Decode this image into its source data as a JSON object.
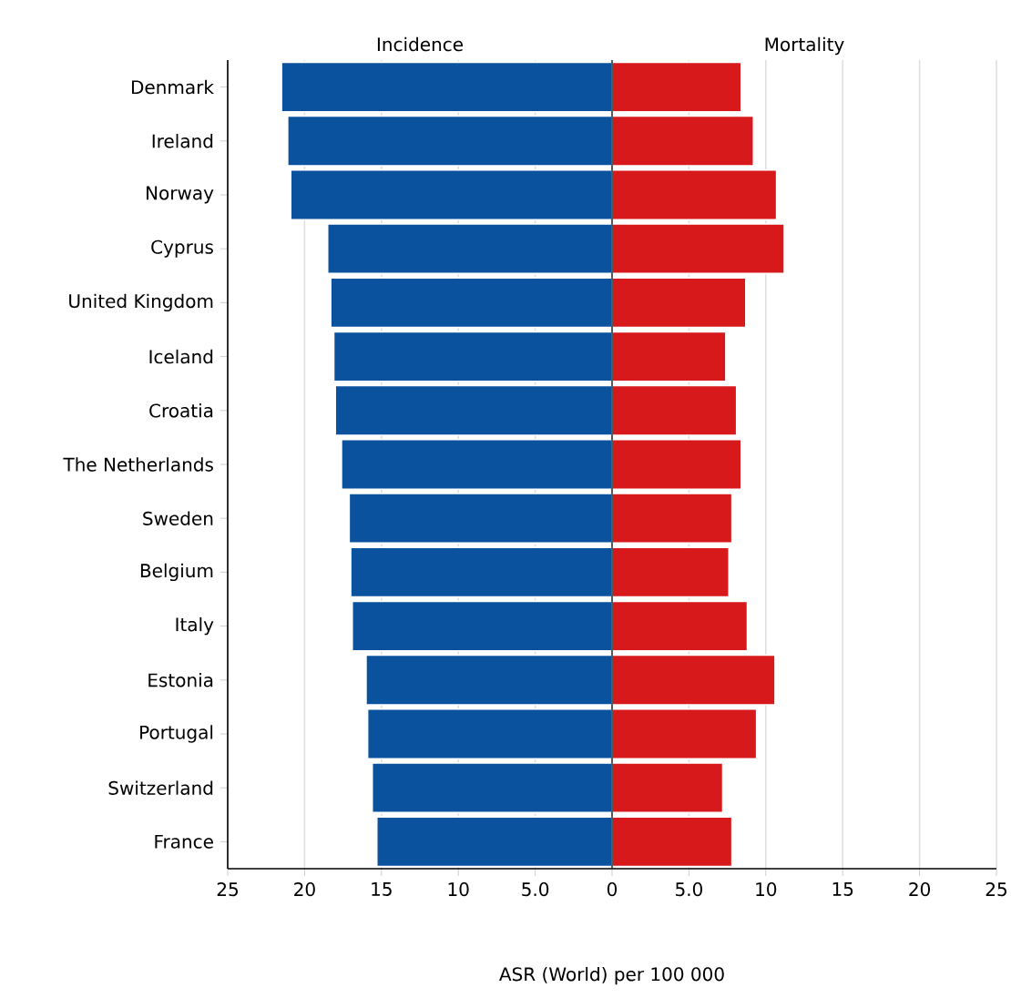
{
  "chart_data": {
    "type": "bar",
    "orientation": "horizontal",
    "xlabel": "ASR (World) per 100 000",
    "categories": [
      "Denmark",
      "Ireland",
      "Norway",
      "Cyprus",
      "United Kingdom",
      "Iceland",
      "Croatia",
      "The Netherlands",
      "Sweden",
      "Belgium",
      "Italy",
      "Estonia",
      "Portugal",
      "Switzerland",
      "France"
    ],
    "series": [
      {
        "name": "Incidence",
        "color": "#0a529e",
        "values": [
          -21.5,
          -21.1,
          -20.9,
          -18.5,
          -18.3,
          -18.1,
          -18.0,
          -17.6,
          -17.1,
          -17.0,
          -16.9,
          -16.0,
          -15.9,
          -15.6,
          -15.3
        ]
      },
      {
        "name": "Mortality",
        "color": "#d7191c",
        "values": [
          8.4,
          9.2,
          10.7,
          11.2,
          8.7,
          7.4,
          8.1,
          8.4,
          7.8,
          7.6,
          8.8,
          10.6,
          9.4,
          7.2,
          7.8
        ]
      }
    ],
    "xlim": [
      -25,
      25
    ],
    "xticks": [
      {
        "value": -25,
        "label": "25"
      },
      {
        "value": -20,
        "label": "20"
      },
      {
        "value": -15,
        "label": "15"
      },
      {
        "value": -10,
        "label": "10"
      },
      {
        "value": -5,
        "label": "5.0"
      },
      0,
      {
        "value": 5,
        "label": "5.0"
      },
      10,
      15,
      20,
      25
    ],
    "ref_lines": [
      {
        "axis": "x",
        "value": 0,
        "color": "#333333"
      }
    ],
    "grid": "x",
    "stacked": true
  }
}
